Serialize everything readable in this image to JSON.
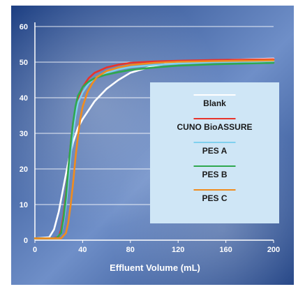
{
  "chart_data": {
    "type": "line",
    "title": "",
    "xlabel": "Effluent Volume (mL)",
    "ylabel": "",
    "xlim": [
      0,
      200
    ],
    "ylim": [
      0,
      60
    ],
    "x_ticks": [
      "0",
      "40",
      "80",
      "120",
      "160",
      "200"
    ],
    "y_ticks": [
      "0",
      "10",
      "20",
      "30",
      "40",
      "50",
      "60"
    ],
    "grid": true,
    "legend_position": "center-right",
    "colors": {
      "background_dark": "#1d3f82",
      "background_light": "#6f8fc8",
      "legend_bg": "#cfe6f6",
      "axis": "#ffffff",
      "gridline": "#ffffff",
      "tick_text": "#ffffff"
    },
    "series": [
      {
        "name": "Blank",
        "color": "#ffffff",
        "x": [
          0,
          12,
          16,
          20,
          24,
          28,
          32,
          36,
          40,
          50,
          60,
          70,
          80,
          100,
          120,
          150,
          200
        ],
        "y": [
          0.5,
          0.8,
          3,
          8,
          15,
          22,
          27.5,
          31.5,
          34,
          39,
          42.5,
          45,
          47,
          49,
          50,
          50.5,
          51
        ]
      },
      {
        "name": "CUNO BioASSURE",
        "color": "#e8332b",
        "x": [
          0,
          16,
          20,
          22,
          24,
          26,
          28,
          30,
          32,
          36,
          40,
          45,
          50,
          60,
          70,
          80,
          100,
          120,
          150,
          200
        ],
        "y": [
          0.5,
          0.5,
          1,
          3,
          7,
          13,
          20,
          27,
          33,
          39.5,
          43,
          45.5,
          47,
          48.5,
          49.3,
          49.8,
          50.2,
          50.4,
          50.6,
          50.8
        ]
      },
      {
        "name": "PES A",
        "color": "#7fd0ee",
        "x": [
          0,
          18,
          22,
          24,
          26,
          28,
          30,
          32,
          34,
          36,
          40,
          45,
          50,
          60,
          70,
          80,
          100,
          120,
          150,
          200
        ],
        "y": [
          0.5,
          0.5,
          2,
          5,
          10,
          17,
          24,
          30,
          35,
          38.5,
          41.5,
          44,
          45.5,
          47,
          48,
          48.6,
          49.2,
          49.6,
          50,
          50.3
        ]
      },
      {
        "name": "PES B",
        "color": "#2fa84f",
        "x": [
          0,
          18,
          22,
          24,
          26,
          28,
          30,
          32,
          34,
          36,
          40,
          45,
          50,
          60,
          70,
          80,
          100,
          120,
          150,
          200
        ],
        "y": [
          0.5,
          0.5,
          2,
          6,
          12,
          20,
          27,
          33,
          37.5,
          40.5,
          43,
          44.5,
          45.5,
          46.5,
          47.2,
          47.8,
          48.5,
          49,
          49.4,
          49.8
        ]
      },
      {
        "name": "PES C",
        "color": "#f08c1e",
        "x": [
          0,
          22,
          26,
          28,
          30,
          32,
          34,
          36,
          38,
          40,
          44,
          48,
          52,
          60,
          70,
          80,
          100,
          120,
          150,
          200
        ],
        "y": [
          0.5,
          0.5,
          2,
          5,
          10,
          16,
          23,
          29,
          34,
          37.5,
          41.5,
          44,
          45.8,
          47.5,
          48.5,
          49.2,
          49.8,
          50.1,
          50.3,
          50.5
        ]
      }
    ]
  }
}
